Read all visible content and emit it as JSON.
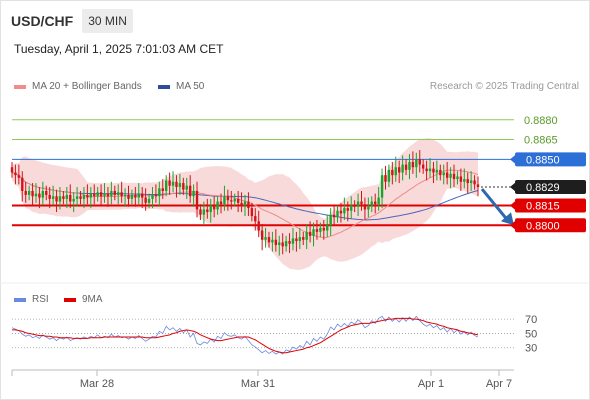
{
  "header": {
    "symbol": "USD/CHF",
    "timeframe": "30 MIN",
    "datetime": "Tuesday, April 1, 2025 7:01:03 AM CET"
  },
  "legend": {
    "ma20": "MA 20 + Bollinger Bands",
    "ma50": "MA 50",
    "credit": "Research © 2025 Trading Central"
  },
  "rsi_legend": {
    "rsi": "RSI",
    "ma": "9MA"
  },
  "colors": {
    "candle_up": "#19a52c",
    "candle_down": "#d21418",
    "ma20": "#f08a8a",
    "ma50": "#4a66b8",
    "band": "#f7d4d4",
    "resistance": "#8fc95a",
    "blue_level": "#2c6fd6",
    "support": "#e00000",
    "arrow": "#2f68ad",
    "rsi": "#6a8ae0",
    "rsi_ma": "#e00000"
  },
  "chart_data": [
    {
      "type": "candlestick",
      "title": "USD/CHF",
      "x_ticks": [
        "Mar 28",
        "Mar 31",
        "Apr 1",
        "Apr 7"
      ],
      "price_labels": [
        {
          "value": 0.888,
          "text": "0.8880",
          "kind": "resistance"
        },
        {
          "value": 0.8865,
          "text": "0.8865",
          "kind": "resistance"
        },
        {
          "value": 0.885,
          "text": "0.8850",
          "kind": "pivot"
        },
        {
          "value": 0.8829,
          "text": "0.8829",
          "kind": "last"
        },
        {
          "value": 0.8815,
          "text": "0.8815",
          "kind": "support"
        },
        {
          "value": 0.88,
          "text": "0.8800",
          "kind": "support"
        }
      ],
      "ylim": [
        0.876,
        0.8895
      ],
      "forecast": {
        "direction": "down",
        "target": 0.88
      },
      "indicators": [
        "MA 20 + Bollinger Bands",
        "MA 50"
      ],
      "close": [
        0.884,
        0.8838,
        0.8836,
        0.8826,
        0.8823,
        0.8826,
        0.8822,
        0.8824,
        0.8821,
        0.8826,
        0.8823,
        0.882,
        0.8822,
        0.8818,
        0.8822,
        0.882,
        0.8823,
        0.8818,
        0.882,
        0.8822,
        0.882,
        0.8823,
        0.8821,
        0.8824,
        0.8822,
        0.8825,
        0.8822,
        0.8824,
        0.8822,
        0.8826,
        0.8823,
        0.8825,
        0.8822,
        0.8823,
        0.882,
        0.8823,
        0.8821,
        0.8824,
        0.8821,
        0.8817,
        0.882,
        0.8823,
        0.8822,
        0.8828,
        0.8826,
        0.8834,
        0.883,
        0.8833,
        0.8829,
        0.8832,
        0.8827,
        0.883,
        0.8822,
        0.8826,
        0.8812,
        0.8808,
        0.8812,
        0.881,
        0.8815,
        0.8812,
        0.8818,
        0.8816,
        0.8822,
        0.8819,
        0.8818,
        0.882,
        0.8817,
        0.8815,
        0.8818,
        0.8813,
        0.8807,
        0.8803,
        0.8796,
        0.8789,
        0.8791,
        0.8787,
        0.8789,
        0.8785,
        0.8787,
        0.8784,
        0.8788,
        0.8786,
        0.879,
        0.8788,
        0.8791,
        0.8789,
        0.8795,
        0.8792,
        0.8797,
        0.8795,
        0.8798,
        0.8796,
        0.88,
        0.8808,
        0.8806,
        0.8811,
        0.8809,
        0.8813,
        0.8811,
        0.8815,
        0.8814,
        0.8818,
        0.8816,
        0.8812,
        0.8814,
        0.8818,
        0.8816,
        0.8821,
        0.8838,
        0.8833,
        0.8842,
        0.8838,
        0.8844,
        0.884,
        0.8846,
        0.8842,
        0.8848,
        0.8844,
        0.885,
        0.8846,
        0.8843,
        0.8841,
        0.8843,
        0.884,
        0.8842,
        0.8838,
        0.884,
        0.8836,
        0.8839,
        0.8835,
        0.8837,
        0.8833,
        0.8835,
        0.8832,
        0.8834,
        0.8831,
        0.8829
      ]
    },
    {
      "type": "line",
      "title": "RSI",
      "series": [
        {
          "name": "RSI",
          "values": [
            58,
            56,
            54,
            49,
            46,
            48,
            44,
            46,
            43,
            48,
            45,
            42,
            44,
            40,
            44,
            42,
            45,
            40,
            42,
            44,
            42,
            45,
            43,
            46,
            44,
            48,
            44,
            46,
            44,
            49,
            45,
            47,
            44,
            45,
            42,
            45,
            43,
            47,
            43,
            39,
            42,
            46,
            45,
            53,
            50,
            60,
            55,
            58,
            53,
            57,
            51,
            55,
            45,
            50,
            36,
            34,
            38,
            36,
            42,
            38,
            46,
            43,
            51,
            47,
            46,
            48,
            44,
            42,
            46,
            40,
            34,
            31,
            27,
            23,
            26,
            22,
            25,
            21,
            24,
            21,
            27,
            25,
            31,
            28,
            33,
            30,
            39,
            34,
            43,
            39,
            45,
            42,
            49,
            59,
            55,
            63,
            59,
            64,
            60,
            66,
            63,
            69,
            65,
            58,
            61,
            68,
            64,
            71,
            74,
            67,
            73,
            67,
            71,
            66,
            72,
            67,
            73,
            68,
            74,
            68,
            63,
            60,
            63,
            58,
            61,
            55,
            58,
            52,
            57,
            51,
            55,
            49,
            53,
            48,
            52,
            47,
            45
          ]
        },
        {
          "name": "9MA",
          "values": [
            55,
            55,
            54,
            53,
            51,
            50,
            49,
            48,
            47,
            47,
            46,
            46,
            45,
            45,
            44,
            44,
            44,
            44,
            43,
            43,
            43,
            43,
            43,
            44,
            44,
            44,
            44,
            45,
            45,
            45,
            45,
            45,
            45,
            45,
            45,
            45,
            45,
            45,
            45,
            44,
            44,
            44,
            44,
            45,
            46,
            47,
            48,
            50,
            51,
            53,
            54,
            55,
            54,
            53,
            51,
            48,
            46,
            44,
            42,
            41,
            40,
            40,
            41,
            42,
            43,
            44,
            45,
            45,
            45,
            45,
            43,
            41,
            38,
            35,
            32,
            29,
            27,
            25,
            24,
            23,
            23,
            24,
            25,
            26,
            27,
            28,
            30,
            31,
            33,
            35,
            37,
            40,
            43,
            46,
            49,
            52,
            55,
            57,
            59,
            61,
            62,
            63,
            64,
            64,
            64,
            65,
            66,
            67,
            68,
            69,
            70,
            70,
            71,
            71,
            71,
            71,
            71,
            70,
            70,
            69,
            68,
            66,
            65,
            64,
            63,
            61,
            60,
            58,
            57,
            56,
            55,
            53,
            52,
            51,
            50,
            49,
            48
          ]
        }
      ],
      "ylim": [
        0,
        100
      ],
      "y_ticks": [
        "70",
        "50",
        "30"
      ]
    }
  ]
}
